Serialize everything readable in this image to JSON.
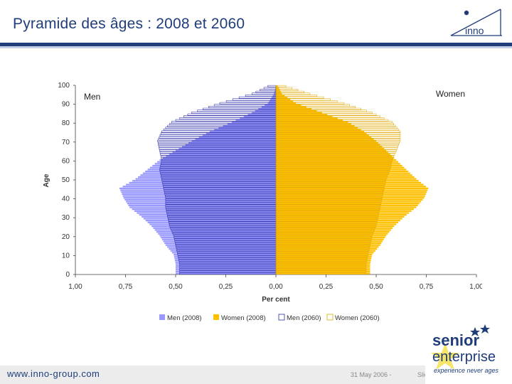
{
  "slide": {
    "title": "Pyramide des âges : 2008 et 2060",
    "footer_url": "www.inno-group.com",
    "footer_date": "31 May 2006 -",
    "footer_slide": "Slide"
  },
  "logo": {
    "text": "inno",
    "icon": "inno-logo-icon"
  },
  "badge": {
    "line1": "senior",
    "line2": "enterprise",
    "line3": "experience never ages",
    "icon": "senior-enterprise-logo-icon"
  },
  "colors": {
    "men2008": "#9999ff",
    "women2008": "#ffc000",
    "men2060_fill": "#ffffff",
    "men2060_stroke": "#2b2ba8",
    "women2060_fill": "#ffffff",
    "women2060_stroke": "#e0a800",
    "title": "#1f3d7a"
  },
  "chart_data": {
    "type": "bar",
    "title": "",
    "ylabel": "Age",
    "xlabel": "Per cent",
    "ylim": [
      0,
      100
    ],
    "xlim": [
      -1.0,
      1.0
    ],
    "y_ticks": [
      "0",
      "10",
      "20",
      "30",
      "40",
      "50",
      "60",
      "70",
      "80",
      "90",
      "100"
    ],
    "x_ticks": [
      "1,00",
      "0,75",
      "0,50",
      "0,25",
      "0,00",
      "0,25",
      "0,50",
      "0,75",
      "1,00"
    ],
    "side_labels": {
      "left": "Men",
      "right": "Women"
    },
    "legend": [
      "Men (2008)",
      "Women (2008)",
      "Men (2060)",
      "Women (2060)"
    ],
    "anchor_ages": [
      0,
      5,
      10,
      15,
      20,
      25,
      30,
      35,
      40,
      45,
      50,
      55,
      60,
      65,
      70,
      75,
      80,
      85,
      90,
      95,
      99
    ],
    "series": [
      {
        "name": "Men (2008)",
        "values": [
          0.5,
          0.5,
          0.51,
          0.55,
          0.58,
          0.62,
          0.67,
          0.73,
          0.76,
          0.78,
          0.7,
          0.64,
          0.58,
          0.5,
          0.42,
          0.33,
          0.22,
          0.12,
          0.04,
          0.01,
          0.0
        ]
      },
      {
        "name": "Women (2008)",
        "values": [
          0.47,
          0.47,
          0.48,
          0.52,
          0.55,
          0.59,
          0.64,
          0.7,
          0.74,
          0.76,
          0.7,
          0.65,
          0.6,
          0.55,
          0.5,
          0.44,
          0.36,
          0.23,
          0.1,
          0.03,
          0.01
        ]
      },
      {
        "name": "Men (2060)",
        "values": [
          0.48,
          0.48,
          0.49,
          0.5,
          0.51,
          0.53,
          0.54,
          0.55,
          0.55,
          0.56,
          0.57,
          0.58,
          0.57,
          0.58,
          0.59,
          0.57,
          0.52,
          0.42,
          0.28,
          0.12,
          0.04
        ]
      },
      {
        "name": "Women (2060)",
        "values": [
          0.45,
          0.45,
          0.46,
          0.47,
          0.48,
          0.5,
          0.51,
          0.52,
          0.53,
          0.54,
          0.55,
          0.57,
          0.58,
          0.6,
          0.62,
          0.62,
          0.58,
          0.48,
          0.34,
          0.17,
          0.05
        ]
      }
    ]
  }
}
